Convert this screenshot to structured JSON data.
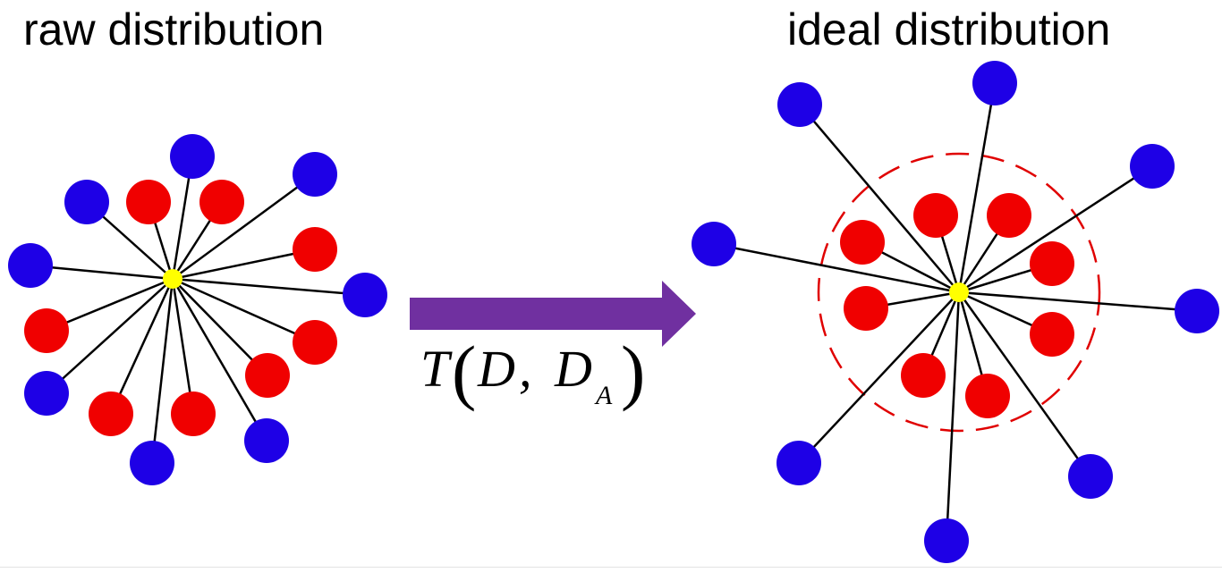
{
  "left_panel": {
    "title": "raw distribution"
  },
  "right_panel": {
    "title": "ideal distribution"
  },
  "transform": {
    "symbol": "T",
    "arg1": "D",
    "separator": ",",
    "arg2": "D",
    "arg2_subscript": "A",
    "open_paren": "(",
    "close_paren": ")"
  },
  "colors": {
    "positive_node": "#1e00e6",
    "negative_node": "#f00000",
    "anchor_node": "#ffff00",
    "edge": "#000000",
    "arrow": "#7030a0",
    "boundary": "#e00000"
  }
}
